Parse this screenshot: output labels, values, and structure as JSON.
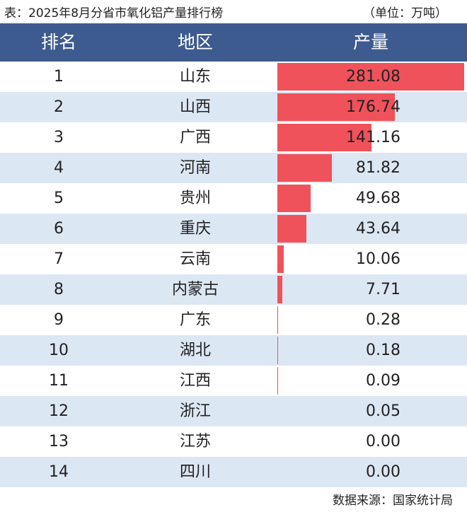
{
  "header": {
    "title": "表：2025年8月分省市氧化铝产量排行榜",
    "unit": "（单位：万吨）"
  },
  "table": {
    "columns": [
      "排名",
      "地区",
      "产量"
    ],
    "rows": [
      [
        "1",
        "山东",
        "281.08"
      ],
      [
        "2",
        "山西",
        "176.74"
      ],
      [
        "3",
        "广西",
        "141.16"
      ],
      [
        "4",
        "河南",
        "81.82"
      ],
      [
        "5",
        "贵州",
        "49.68"
      ],
      [
        "6",
        "重庆",
        "43.64"
      ],
      [
        "7",
        "云南",
        "10.06"
      ],
      [
        "8",
        "内蒙古",
        "7.71"
      ],
      [
        "9",
        "广东",
        "0.28"
      ],
      [
        "10",
        "湖北",
        "0.18"
      ],
      [
        "11",
        "江西",
        "0.09"
      ],
      [
        "12",
        "浙江",
        "0.05"
      ],
      [
        "13",
        "江苏",
        "0.00"
      ],
      [
        "14",
        "四川",
        "0.00"
      ]
    ]
  },
  "footer": {
    "source": "数据来源：国家统计局"
  }
}
